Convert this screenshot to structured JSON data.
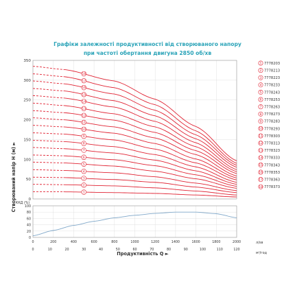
{
  "title": {
    "line1": "Графіки залежності продуктивності від створюваного напору",
    "line2": "при частоті обертання двигуна 2850 об/хв"
  },
  "colors": {
    "title": "#2aa3b8",
    "curve": "#e02232",
    "efficiency": "#7fa7c9",
    "grid": "#d9d9d9"
  },
  "chart_data": [
    {
      "type": "line",
      "ylabel": "Створюваний напір H (м) ►",
      "ylim": [
        0,
        350
      ],
      "xlim": [
        0,
        2000
      ],
      "yticks": [
        "0",
        "50",
        "100",
        "150",
        "200",
        "250",
        "300",
        "350"
      ],
      "grid": true,
      "legend_position": "right",
      "series": [
        {
          "name": "7778203",
          "number": "1",
          "values": [
            [
              0,
              18
            ],
            [
              300,
              18
            ],
            [
              800,
              16
            ],
            [
              1200,
              14
            ],
            [
              1600,
              10
            ],
            [
              2000,
              5
            ]
          ]
        },
        {
          "name": "7778213",
          "number": "2",
          "values": [
            [
              0,
              37
            ],
            [
              300,
              36
            ],
            [
              800,
              33
            ],
            [
              1200,
              28
            ],
            [
              1600,
              20
            ],
            [
              2000,
              10
            ]
          ]
        },
        {
          "name": "7778223",
          "number": "3",
          "values": [
            [
              0,
              55
            ],
            [
              300,
              54
            ],
            [
              800,
              49
            ],
            [
              1200,
              42
            ],
            [
              1600,
              30
            ],
            [
              2000,
              16
            ]
          ]
        },
        {
          "name": "7778233",
          "number": "4",
          "values": [
            [
              0,
              74
            ],
            [
              300,
              72
            ],
            [
              800,
              66
            ],
            [
              1200,
              56
            ],
            [
              1600,
              40
            ],
            [
              2000,
              21
            ]
          ]
        },
        {
          "name": "7778243",
          "number": "5",
          "values": [
            [
              0,
              93
            ],
            [
              300,
              91
            ],
            [
              800,
              83
            ],
            [
              1200,
              70
            ],
            [
              1600,
              51
            ],
            [
              2000,
              27
            ]
          ]
        },
        {
          "name": "7778253",
          "number": "6",
          "values": [
            [
              0,
              111
            ],
            [
              300,
              109
            ],
            [
              800,
              99
            ],
            [
              1200,
              84
            ],
            [
              1600,
              61
            ],
            [
              2000,
              32
            ]
          ]
        },
        {
          "name": "7778263",
          "number": "7",
          "values": [
            [
              0,
              130
            ],
            [
              300,
              127
            ],
            [
              800,
              116
            ],
            [
              1200,
              98
            ],
            [
              1600,
              71
            ],
            [
              2000,
              37
            ]
          ]
        },
        {
          "name": "7778273",
          "number": "8",
          "values": [
            [
              0,
              148
            ],
            [
              300,
              145
            ],
            [
              800,
              132
            ],
            [
              1200,
              112
            ],
            [
              1600,
              81
            ],
            [
              2000,
              42
            ]
          ]
        },
        {
          "name": "7778283",
          "number": "9",
          "values": [
            [
              0,
              167
            ],
            [
              300,
              164
            ],
            [
              800,
              149
            ],
            [
              1200,
              126
            ],
            [
              1600,
              91
            ],
            [
              2000,
              48
            ]
          ]
        },
        {
          "name": "7778293",
          "number": "10",
          "values": [
            [
              0,
              186
            ],
            [
              300,
              182
            ],
            [
              800,
              166
            ],
            [
              1200,
              140
            ],
            [
              1600,
              101
            ],
            [
              2000,
              53
            ]
          ]
        },
        {
          "name": "7778303",
          "number": "11",
          "values": [
            [
              0,
              205
            ],
            [
              300,
              200
            ],
            [
              800,
              182
            ],
            [
              1200,
              154
            ],
            [
              1600,
              112
            ],
            [
              2000,
              58
            ]
          ]
        },
        {
          "name": "7778313",
          "number": "12",
          "values": [
            [
              0,
              223
            ],
            [
              300,
              218
            ],
            [
              800,
              199
            ],
            [
              1200,
              168
            ],
            [
              1600,
              122
            ],
            [
              2000,
              64
            ]
          ]
        },
        {
          "name": "7778323",
          "number": "13",
          "values": [
            [
              0,
              242
            ],
            [
              300,
              236
            ],
            [
              800,
              215
            ],
            [
              1200,
              182
            ],
            [
              1600,
              132
            ],
            [
              2000,
              69
            ]
          ]
        },
        {
          "name": "7778333",
          "number": "14",
          "values": [
            [
              0,
              261
            ],
            [
              300,
              255
            ],
            [
              800,
              232
            ],
            [
              1200,
              196
            ],
            [
              1600,
              142
            ],
            [
              2000,
              74
            ]
          ]
        },
        {
          "name": "7778343",
          "number": "15",
          "values": [
            [
              0,
              279
            ],
            [
              300,
              273
            ],
            [
              800,
              248
            ],
            [
              1200,
              210
            ],
            [
              1600,
              152
            ],
            [
              2000,
              80
            ]
          ]
        },
        {
          "name": "7778353",
          "number": "16",
          "values": [
            [
              0,
              298
            ],
            [
              300,
              291
            ],
            [
              800,
              265
            ],
            [
              1200,
              224
            ],
            [
              1600,
              162
            ],
            [
              2000,
              85
            ]
          ]
        },
        {
          "name": "7778363",
          "number": "17",
          "values": [
            [
              0,
              316
            ],
            [
              300,
              309
            ],
            [
              800,
              281
            ],
            [
              1200,
              238
            ],
            [
              1600,
              172
            ],
            [
              2000,
              90
            ]
          ]
        },
        {
          "name": "7778373",
          "number": "18",
          "values": [
            [
              0,
              335
            ],
            [
              300,
              327
            ],
            [
              800,
              298
            ],
            [
              1200,
              252
            ],
            [
              1600,
              183
            ],
            [
              2000,
              96
            ]
          ]
        }
      ]
    },
    {
      "type": "line",
      "ylabel": "ККД (%)",
      "ylim": [
        0,
        100
      ],
      "xlim": [
        0,
        2000
      ],
      "yticks": [
        "0",
        "20",
        "40",
        "60",
        "80",
        "100"
      ],
      "xticks_top": [
        "0",
        "200",
        "400",
        "600",
        "800",
        "1000",
        "1200",
        "1400",
        "1600",
        "1800",
        "2000"
      ],
      "xticks_bottom": [
        "0",
        "10",
        "20",
        "30",
        "40",
        "50",
        "60",
        "70",
        "80",
        "90",
        "100",
        "110",
        "120"
      ],
      "unit_top": "л/хв",
      "unit_bottom": "м³/год",
      "xlabel": "Продуктивність Q ►",
      "grid": true,
      "series": [
        {
          "name": "",
          "values": [
            [
              0,
              5
            ],
            [
              200,
              22
            ],
            [
              400,
              38
            ],
            [
              600,
              51
            ],
            [
              800,
              62
            ],
            [
              1000,
              70
            ],
            [
              1200,
              76
            ],
            [
              1400,
              80
            ],
            [
              1600,
              80
            ],
            [
              1800,
              75
            ],
            [
              2000,
              62
            ]
          ]
        }
      ]
    }
  ]
}
